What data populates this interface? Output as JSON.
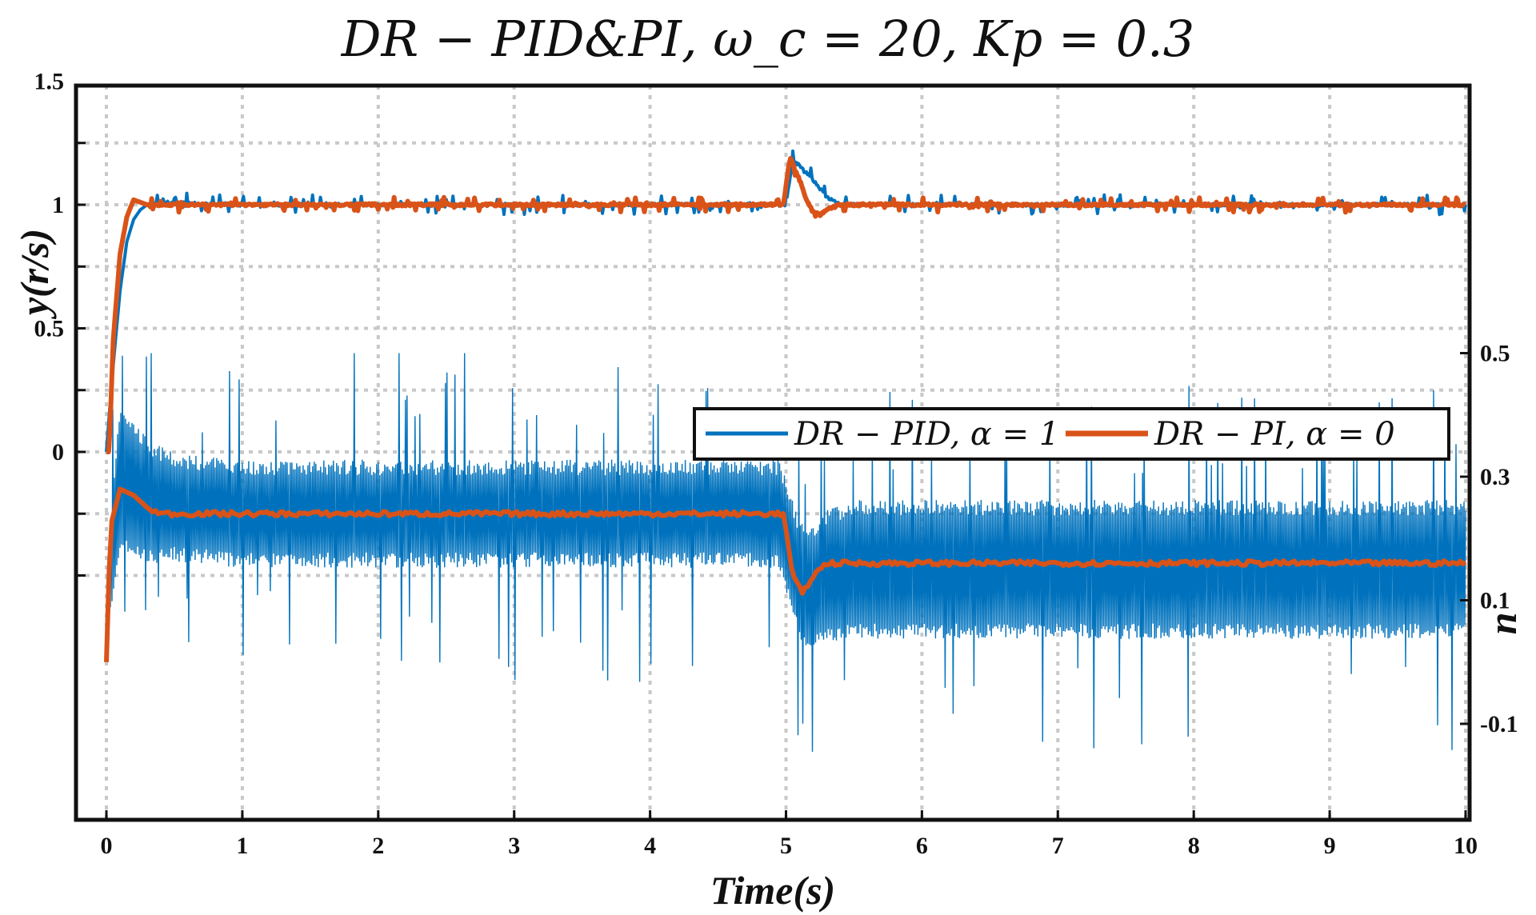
{
  "chart_data": {
    "type": "line",
    "title": "DR − PID&PI, ω_c = 20, Kp = 0.3",
    "xlabel": "Time(s)",
    "ylabel_left": "y(r/s)",
    "ylabel_right": "u",
    "xlim": [
      0,
      10
    ],
    "xticks": [
      "0",
      "1",
      "2",
      "3",
      "4",
      "5",
      "6",
      "7",
      "8",
      "9",
      "10"
    ],
    "yticks_left": [
      "0",
      "0.5",
      "1",
      "1.5"
    ],
    "yticks_right": [
      "-0.1",
      "0.1",
      "0.3",
      "0.5"
    ],
    "grid": true,
    "legend_position": "right-middle",
    "colors": {
      "pid": "#0072BD",
      "pi": "#D95319"
    },
    "series": [
      {
        "name": "DR − PID, α = 1",
        "axis": "left",
        "x": [
          0,
          0.05,
          0.1,
          0.15,
          0.2,
          0.25,
          0.3,
          0.4,
          1,
          2,
          3,
          4,
          4.95,
          5,
          5.05,
          5.1,
          5.2,
          5.3,
          5.4,
          6,
          7,
          8,
          9,
          10
        ],
        "y": [
          0,
          0.35,
          0.65,
          0.85,
          0.94,
          0.98,
          1.0,
          1.01,
          1.0,
          1.0,
          1.0,
          1.0,
          1.0,
          1.0,
          1.18,
          1.16,
          1.1,
          1.03,
          1.0,
          1.0,
          1.0,
          1.0,
          1.0,
          1.0
        ]
      },
      {
        "name": "DR − PI, α = 0",
        "axis": "left",
        "x": [
          0,
          0.02,
          0.05,
          0.1,
          0.15,
          0.2,
          0.25,
          0.3,
          1,
          2,
          3,
          4,
          4.98,
          5.03,
          5.1,
          5.15,
          5.2,
          5.25,
          5.3,
          5.4,
          6,
          7,
          8,
          9,
          10
        ],
        "y": [
          0,
          0,
          0.45,
          0.8,
          0.95,
          1.02,
          1.01,
          1.0,
          1.0,
          1.0,
          1.0,
          1.0,
          1.0,
          1.19,
          1.1,
          1.02,
          0.97,
          0.96,
          0.98,
          1.0,
          1.0,
          1.0,
          1.0,
          1.0,
          1.0
        ]
      },
      {
        "name": "u (DR − PID, α = 1)",
        "axis": "right",
        "x": [
          0,
          0.1,
          0.3,
          0.5,
          1,
          2,
          3,
          4,
          4.95,
          5.02,
          5.1,
          5.2,
          5.3,
          5.5,
          6,
          7,
          8,
          9,
          10
        ],
        "y_mean": [
          0.08,
          0.3,
          0.26,
          0.25,
          0.24,
          0.24,
          0.24,
          0.24,
          0.24,
          0.19,
          0.13,
          0.12,
          0.14,
          0.15,
          0.15,
          0.15,
          0.15,
          0.15,
          0.15
        ],
        "band": [
          0.04,
          0.11,
          0.09,
          0.075,
          0.075,
          0.075,
          0.075,
          0.075,
          0.075,
          0.08,
          0.085,
          0.09,
          0.095,
          0.1,
          0.1,
          0.1,
          0.1,
          0.1,
          0.1
        ],
        "spike_range": [
          -0.2,
          0.5
        ]
      },
      {
        "name": "u (DR − PI, α = 0)",
        "axis": "right",
        "x": [
          0,
          0.03,
          0.1,
          0.2,
          0.3,
          0.4,
          1,
          2,
          3,
          4,
          4.98,
          5.05,
          5.12,
          5.2,
          5.3,
          6,
          7,
          8,
          9,
          10
        ],
        "y": [
          0,
          0.22,
          0.28,
          0.27,
          0.25,
          0.24,
          0.24,
          0.24,
          0.24,
          0.24,
          0.24,
          0.14,
          0.11,
          0.14,
          0.16,
          0.16,
          0.16,
          0.16,
          0.16,
          0.16
        ]
      }
    ]
  }
}
